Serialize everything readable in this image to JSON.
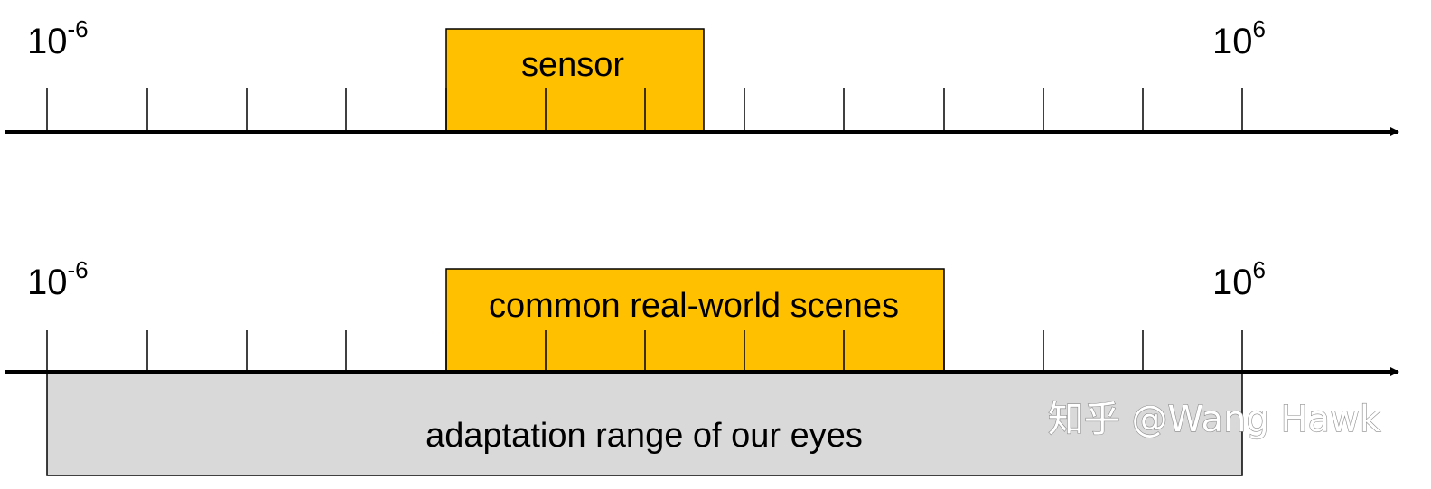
{
  "scale": {
    "min_exponent": -6,
    "max_exponent": 6,
    "base": "10"
  },
  "axes": [
    {
      "id": "sensor",
      "min_label": {
        "base": "10",
        "exponent": "-6"
      },
      "max_label": {
        "base": "10",
        "exponent": "6"
      },
      "range_box": {
        "label": "sensor",
        "from_exponent": -2,
        "to_exponent": 0.6,
        "color": "#FFC000"
      }
    },
    {
      "id": "scenes",
      "min_label": {
        "base": "10",
        "exponent": "-6"
      },
      "max_label": {
        "base": "10",
        "exponent": "6"
      },
      "range_box": {
        "label": "common real-world scenes",
        "from_exponent": -2,
        "to_exponent": 3,
        "color": "#FFC000"
      },
      "lower_box": {
        "label": "adaptation range of our eyes",
        "from_exponent": -6,
        "to_exponent": 6,
        "color": "#D9D9D9"
      }
    }
  ],
  "watermark": "知乎 @Wang Hawk"
}
